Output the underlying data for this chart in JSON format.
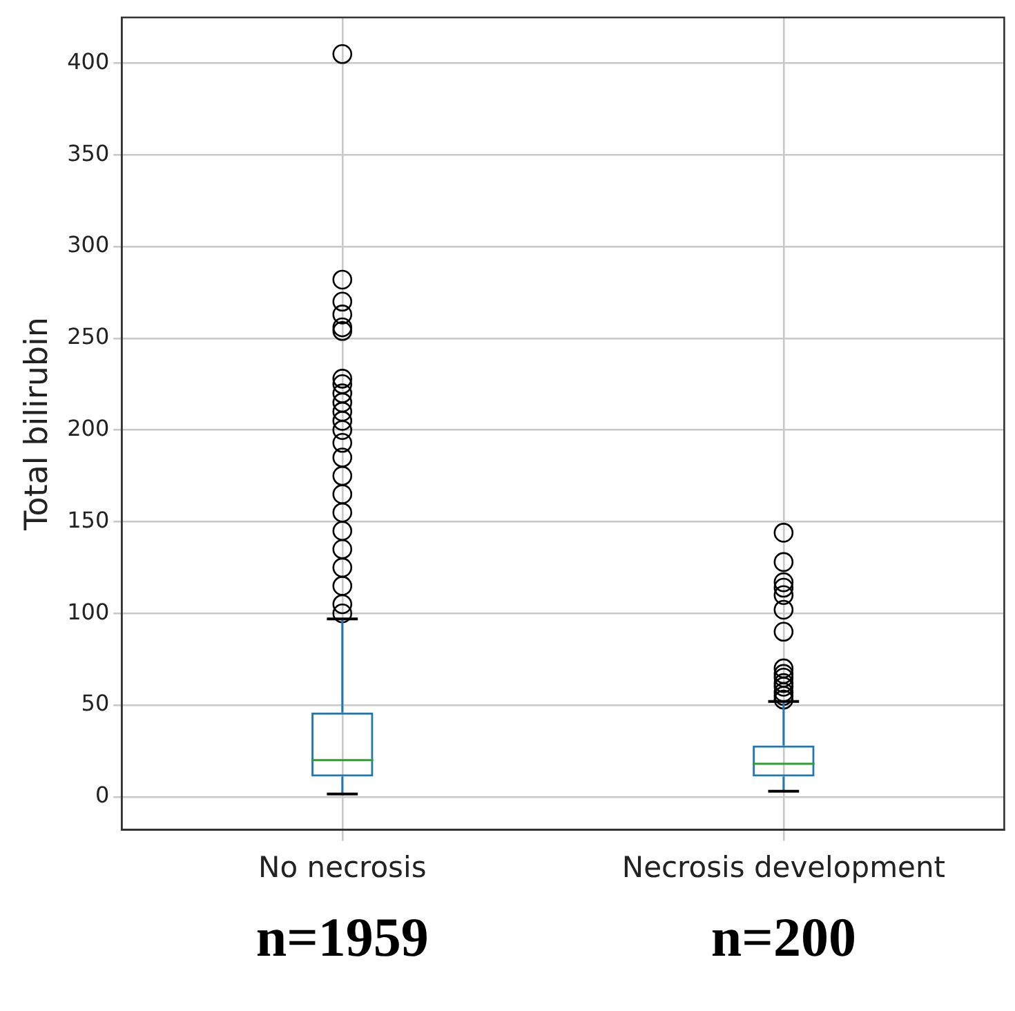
{
  "chart_data": {
    "type": "box",
    "ylabel": "Total bilirubin",
    "categories": [
      "No necrosis",
      "Necrosis development"
    ],
    "color": "#1f77b4",
    "boxes": [
      {
        "low": 1.5,
        "q1": 11,
        "median": 20,
        "q3": 46,
        "high": 97,
        "outliers": [
          405,
          282,
          270,
          263,
          256,
          254,
          228,
          225,
          220,
          215,
          210,
          205,
          200,
          193,
          185,
          175,
          165,
          155,
          145,
          135,
          125,
          115,
          105,
          100
        ]
      },
      {
        "low": 3,
        "q1": 11,
        "median": 18,
        "q3": 28,
        "high": 52,
        "outliers": [
          144,
          128,
          117,
          114,
          110,
          102,
          90,
          70,
          67,
          65,
          62,
          60,
          57,
          55,
          53
        ]
      }
    ],
    "ylim": [
      -18,
      425
    ],
    "yticks": [
      0,
      50,
      100,
      150,
      200,
      250,
      300,
      350,
      400
    ],
    "grid": true,
    "legend": false,
    "annotations": [
      "n=1959",
      "n=200"
    ]
  }
}
